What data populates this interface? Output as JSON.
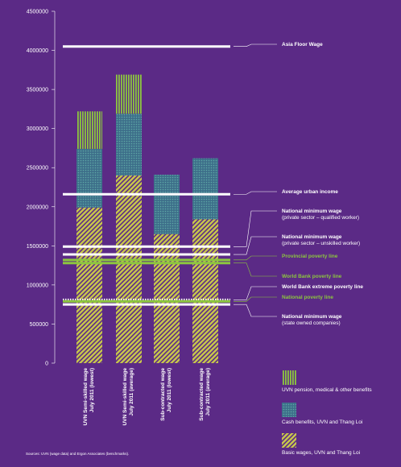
{
  "chart_data": {
    "type": "bar",
    "stacked": true,
    "ylim": [
      0,
      4500000
    ],
    "yticks": [
      0,
      500000,
      1000000,
      1500000,
      2000000,
      2500000,
      3000000,
      3500000,
      4000000,
      4500000
    ],
    "categories": [
      [
        "UVN Semi-skilled wage",
        "July 2011 (lowest)"
      ],
      [
        "UVN Semi-skilled wage",
        "July 2011 (average)"
      ],
      [
        "Sub-contracted wage",
        "July 2011 (lowest)"
      ],
      [
        "Sub-contracted wage",
        "July 2011 (average)"
      ]
    ],
    "series": [
      {
        "name": "Basic wages, UVN and Thang Loi",
        "values": [
          1990000,
          2400000,
          1650000,
          1840000
        ],
        "color": "#c9c94a",
        "pattern": "diagonal"
      },
      {
        "name": "Cash benefits, UVN and Thang Loi",
        "values": [
          750000,
          790000,
          760000,
          780000
        ],
        "color": "#3d7a8c",
        "pattern": "dots"
      },
      {
        "name": "UVN pension, medical & other benefits",
        "values": [
          480000,
          500000,
          0,
          0
        ],
        "color": "#8cc63f",
        "pattern": "vertical"
      }
    ],
    "reference_lines": [
      {
        "label": "Asia Floor Wage",
        "value": 4050000,
        "color": "#ffffff",
        "style": "solid"
      },
      {
        "label": "Average urban income",
        "value": 2160000,
        "color": "#ffffff",
        "style": "solid"
      },
      {
        "label": "National minimum wage\n(private sector – qualified worker)",
        "value": 1490000,
        "color": "#ffffff",
        "style": "solid"
      },
      {
        "label": "National minimum wage\n(private sector – unskilled worker)",
        "value": 1390000,
        "color": "#ffffff",
        "style": "solid"
      },
      {
        "label": "Provincial poverty line",
        "value": 1320000,
        "color": "#8cc63f",
        "style": "solid"
      },
      {
        "label": "World Bank poverty line",
        "value": 1280000,
        "color": "#8cc63f",
        "style": "solid"
      },
      {
        "label": "World Bank extreme poverty line",
        "value": 810000,
        "color": "#ffffff",
        "style": "dotted"
      },
      {
        "label": "National poverty line",
        "value": 790000,
        "color": "#8cc63f",
        "style": "solid"
      },
      {
        "label": "National minimum wage\n(state owned companies)",
        "value": 750000,
        "color": "#ffffff",
        "style": "solid"
      }
    ],
    "source": "Sources: UVN (wage data) and Ergon Associates (benchmarks)."
  }
}
